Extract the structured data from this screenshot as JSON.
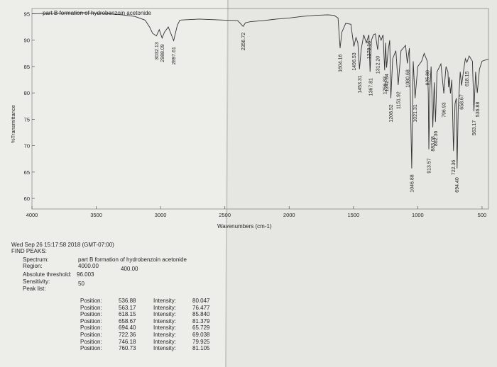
{
  "chart_data": {
    "type": "line",
    "title": "part B formation of hydrobenzoin acetonide",
    "xlabel": "Wavenumbers (cm-1)",
    "ylabel": "%Transmittance",
    "xlim": [
      4000,
      450
    ],
    "ylim": [
      58,
      96
    ],
    "x_ticks": [
      4000,
      3500,
      3000,
      2500,
      2000,
      1500,
      1000,
      500
    ],
    "y_ticks": [
      60,
      65,
      70,
      75,
      80,
      85,
      90,
      95
    ],
    "series": [
      {
        "x": [
          4000,
          3800,
          3600,
          3400,
          3300,
          3200,
          3120,
          3085,
          3062,
          3032,
          3010,
          2988,
          2970,
          2940,
          2898,
          2870,
          2850,
          2700,
          2500,
          2400,
          2380,
          2358,
          2340,
          2300,
          2200,
          2100,
          2000,
          1900,
          1800,
          1700,
          1650,
          1620,
          1604,
          1590,
          1560,
          1520,
          1497,
          1480,
          1466,
          1453,
          1440,
          1420,
          1400,
          1380,
          1371,
          1360,
          1345,
          1330,
          1312,
          1300,
          1285,
          1270,
          1257,
          1250,
          1242,
          1230,
          1218,
          1209,
          1195,
          1170,
          1152,
          1130,
          1095,
          1081,
          1065,
          1047,
          1035,
          1021,
          1000,
          970,
          950,
          926,
          918,
          914,
          905,
          896,
          883,
          872,
          862,
          850,
          820,
          797,
          780,
          765,
          761,
          755,
          746,
          735,
          722,
          710,
          700,
          694,
          685,
          670,
          659,
          645,
          630,
          618,
          600,
          575,
          563,
          550,
          537,
          520,
          500,
          480,
          460,
          450
        ],
        "y": [
          95.0,
          95.1,
          95.2,
          95.0,
          94.8,
          94.5,
          93.8,
          92.5,
          91.3,
          90.8,
          92.0,
          90.4,
          91.5,
          92.5,
          89.9,
          92.8,
          93.8,
          94.0,
          93.8,
          93.7,
          93.2,
          92.6,
          93.3,
          93.5,
          93.7,
          94.0,
          94.2,
          94.5,
          94.7,
          94.8,
          94.7,
          94.2,
          88.5,
          91.5,
          93.2,
          93.0,
          88.8,
          90.5,
          89.5,
          84.5,
          88.2,
          91.0,
          89.5,
          91.0,
          84.0,
          90.0,
          91.0,
          91.2,
          88.2,
          91.0,
          90.0,
          91.0,
          84.3,
          89.5,
          84.8,
          88.0,
          90.0,
          79.0,
          86.5,
          88.0,
          81.5,
          88.0,
          89.0,
          85.6,
          88.5,
          65.7,
          86.0,
          79.0,
          85.0,
          86.0,
          87.5,
          86.0,
          80.0,
          69.3,
          81.0,
          85.0,
          73.5,
          82.0,
          74.5,
          84.0,
          85.5,
          79.9,
          85.0,
          84.0,
          81.1,
          83.0,
          79.9,
          82.5,
          69.0,
          78.0,
          79.0,
          65.7,
          77.0,
          84.0,
          81.4,
          84.0,
          86.5,
          85.8,
          87.0,
          86.0,
          76.5,
          84.0,
          80.0,
          84.5,
          86.0,
          86.2,
          86.3,
          86.4
        ]
      }
    ],
    "peak_labels": [
      "3032.13",
      "2988.09",
      "2897.61",
      "2356.72",
      "1604.16",
      "1496.53",
      "1453.31",
      "1379.16",
      "1367.81",
      "1312.20",
      "1256.83",
      "1242.64",
      "1208.52",
      "1151.92",
      "1080.68",
      "1046.88",
      "1021.31",
      "925.80",
      "913.57",
      "883.08",
      "862.36",
      "796.93",
      "722.36",
      "694.40",
      "658.67",
      "618.15",
      "563.17",
      "536.88"
    ]
  },
  "report": {
    "timestamp": "Wed Sep 26 15:17:58 2018 (GMT-07:00)",
    "heading": "FIND PEAKS:",
    "spectrum_label": "Spectrum:",
    "spectrum_value": "part B formation of hydrobenzoin acetonide",
    "region_label": "Region:",
    "region_from": "4000.00",
    "region_to": "400.00",
    "threshold_label": "Absolute threshold:",
    "threshold_value": "96.003",
    "sensitivity_label": "Sensitivity:",
    "sensitivity_value": "50",
    "peak_list_label": "Peak list:",
    "position_label": "Position:",
    "intensity_label": "Intensity:",
    "peaks": [
      {
        "position": "536.88",
        "intensity": "80.047"
      },
      {
        "position": "563.17",
        "intensity": "76.477"
      },
      {
        "position": "618.15",
        "intensity": "85.840"
      },
      {
        "position": "658.67",
        "intensity": "81.379"
      },
      {
        "position": "694.40",
        "intensity": "65.729"
      },
      {
        "position": "722.36",
        "intensity": "69.038"
      },
      {
        "position": "746.18",
        "intensity": "79.925"
      },
      {
        "position": "760.73",
        "intensity": "81.105"
      }
    ]
  },
  "colors": {
    "paper": "#e9e9e5",
    "ink": "#262626",
    "spectrum": "#333333",
    "table_background": "#6f706d"
  }
}
